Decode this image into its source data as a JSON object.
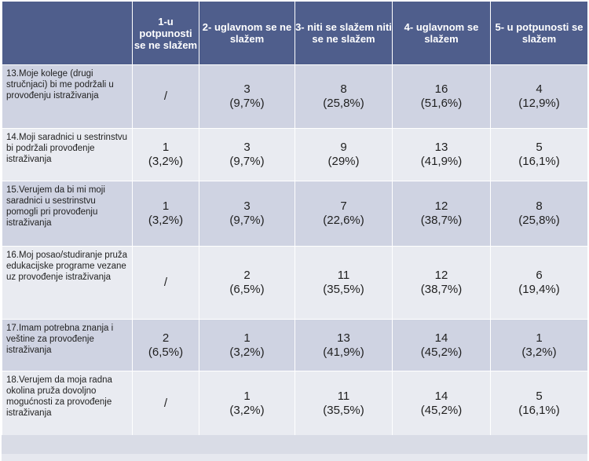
{
  "header": {
    "corner": "",
    "col1": "1-u potpunosti se ne slažem",
    "col2": "2- uglavnom se ne slažem",
    "col3": "3- niti se slažem niti se ne slažem",
    "col4": "4- uglavnom se slažem",
    "col5": "5- u potpunosti se slažem"
  },
  "rows": [
    {
      "question": "13.Moje kolege (drugi stručnjaci) bi me podržali u provođenju istraživanja",
      "c1": {
        "count": "/",
        "pct": ""
      },
      "c2": {
        "count": "3",
        "pct": "(9,7%)"
      },
      "c3": {
        "count": "8",
        "pct": "(25,8%)"
      },
      "c4": {
        "count": "16",
        "pct": "(51,6%)"
      },
      "c5": {
        "count": "4",
        "pct": "(12,9%)"
      }
    },
    {
      "question": "14.Moji saradnici u sestrinstvu bi podržali provođenje istraživanja",
      "c1": {
        "count": "1",
        "pct": "(3,2%)"
      },
      "c2": {
        "count": "3",
        "pct": "(9,7%)"
      },
      "c3": {
        "count": "9",
        "pct": "(29%)"
      },
      "c4": {
        "count": "13",
        "pct": "(41,9%)"
      },
      "c5": {
        "count": "5",
        "pct": "(16,1%)"
      }
    },
    {
      "question": "15.Verujem da bi mi moji saradnici u sestrinstvu pomogli pri provođenju istraživanja",
      "c1": {
        "count": "1",
        "pct": "(3,2%)"
      },
      "c2": {
        "count": "3",
        "pct": "(9,7%)"
      },
      "c3": {
        "count": "7",
        "pct": "(22,6%)"
      },
      "c4": {
        "count": "12",
        "pct": "(38,7%)"
      },
      "c5": {
        "count": "8",
        "pct": "(25,8%)"
      }
    },
    {
      "question": "16.Moj posao/studiranje pruža edukacijske programe vezane uz provođenje istraživanja",
      "c1": {
        "count": "/",
        "pct": ""
      },
      "c2": {
        "count": "2",
        "pct": "(6,5%)"
      },
      "c3": {
        "count": "11",
        "pct": "(35,5%)"
      },
      "c4": {
        "count": "12",
        "pct": "(38,7%)"
      },
      "c5": {
        "count": "6",
        "pct": "(19,4%)"
      }
    },
    {
      "question": "17.Imam potrebna znanja i veštine za provođenje istraživanja",
      "c1": {
        "count": "2",
        "pct": "(6,5%)"
      },
      "c2": {
        "count": "1",
        "pct": "(3,2%)"
      },
      "c3": {
        "count": "13",
        "pct": "(41,9%)"
      },
      "c4": {
        "count": "14",
        "pct": "(45,2%)"
      },
      "c5": {
        "count": "1",
        "pct": "(3,2%)"
      }
    },
    {
      "question": "18.Verujem da moja radna okolina pruža dovoljno mogućnosti za provođenje istraživanja",
      "c1": {
        "count": "/",
        "pct": ""
      },
      "c2": {
        "count": "1",
        "pct": "(3,2%)"
      },
      "c3": {
        "count": "11",
        "pct": "(35,5%)"
      },
      "c4": {
        "count": "14",
        "pct": "(45,2%)"
      },
      "c5": {
        "count": "5",
        "pct": "(16,1%)"
      }
    }
  ],
  "colors": {
    "header_bg": "#4f5e8c",
    "row_odd_bg": "#cfd3e2",
    "row_even_bg": "#e9ebf1"
  }
}
